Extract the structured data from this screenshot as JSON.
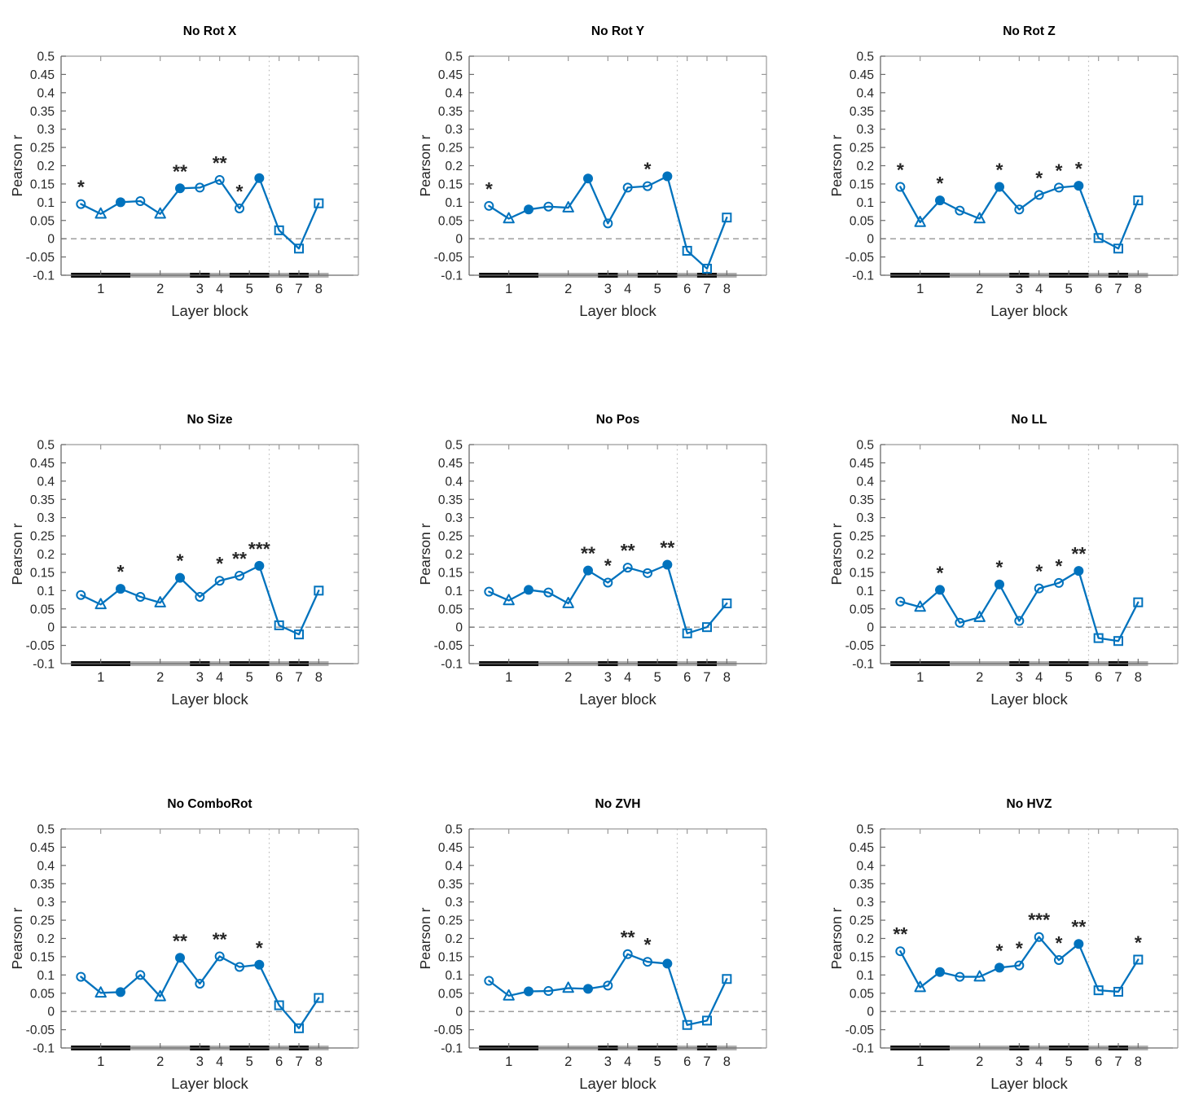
{
  "figure": {
    "ylabel": "Pearson r",
    "xlabel": "Layer block",
    "ylim": [
      -0.1,
      0.5
    ],
    "xlim": [
      0,
      15
    ],
    "yticks": [
      -0.1,
      -0.05,
      0,
      0.05,
      0.1,
      0.15,
      0.2,
      0.25,
      0.3,
      0.35,
      0.4,
      0.45,
      0.5
    ],
    "ytick_labels": [
      "-0.1",
      "-0.05",
      "0",
      "0.05",
      "0.1",
      "0.15",
      "0.2",
      "0.25",
      "0.3",
      "0.35",
      "0.4",
      "0.45",
      "0.5"
    ],
    "xtick_positions": [
      2,
      5,
      7,
      8,
      9.5,
      11,
      12,
      13
    ],
    "xtick_labels": [
      "1",
      "2",
      "3",
      "4",
      "5",
      "6",
      "7",
      "8"
    ],
    "zero_dashed_line_y": 0,
    "separator_dotted_line_x": 10.5,
    "line_color": "#0072BD",
    "sig_color": "#000000",
    "bar_black": "#0d0d0d",
    "bar_gray": "#b0b0b0",
    "marker_sequence": [
      "circle",
      "triangle",
      "circle-filled",
      "circle",
      "triangle",
      "circle-filled",
      "circle",
      "circle",
      "circle",
      "circle-filled",
      "square",
      "square",
      "square"
    ],
    "layer_block_bars": [
      {
        "block": "1",
        "from": 0.5,
        "to": 3.5,
        "color": "#0d0d0d"
      },
      {
        "block": "2",
        "from": 3.5,
        "to": 6.5,
        "color": "#b0b0b0"
      },
      {
        "block": "3",
        "from": 6.5,
        "to": 7.5,
        "color": "#0d0d0d"
      },
      {
        "block": "4",
        "from": 7.5,
        "to": 8.5,
        "color": "#b0b0b0"
      },
      {
        "block": "5",
        "from": 8.5,
        "to": 10.5,
        "color": "#0d0d0d"
      },
      {
        "block": "6",
        "from": 10.5,
        "to": 11.5,
        "color": "#b0b0b0"
      },
      {
        "block": "7",
        "from": 11.5,
        "to": 12.5,
        "color": "#0d0d0d"
      },
      {
        "block": "8",
        "from": 12.5,
        "to": 13.5,
        "color": "#b0b0b0"
      }
    ]
  },
  "chart_data": [
    {
      "type": "line",
      "title": "No Rot X",
      "xlabel": "Layer block",
      "ylabel": "Pearson r",
      "x": [
        1,
        2,
        3,
        4,
        5,
        6,
        7,
        8,
        9,
        10,
        11,
        12,
        13
      ],
      "values": [
        0.095,
        0.068,
        0.1,
        0.103,
        0.068,
        0.138,
        0.14,
        0.161,
        0.083,
        0.166,
        0.023,
        -0.027,
        0.097
      ],
      "sig": [
        "*",
        "",
        "",
        "",
        "",
        "**",
        "",
        "**",
        "*",
        "",
        "",
        "",
        ""
      ]
    },
    {
      "type": "line",
      "title": "No Rot Y",
      "xlabel": "Layer block",
      "ylabel": "Pearson r",
      "x": [
        1,
        2,
        3,
        4,
        5,
        6,
        7,
        8,
        9,
        10,
        11,
        12,
        13
      ],
      "values": [
        0.09,
        0.055,
        0.08,
        0.088,
        0.085,
        0.165,
        0.042,
        0.14,
        0.144,
        0.171,
        -0.033,
        -0.082,
        0.058
      ],
      "sig": [
        "*",
        "",
        "",
        "",
        "",
        "",
        "",
        "",
        "*",
        "",
        "",
        "",
        ""
      ]
    },
    {
      "type": "line",
      "title": "No Rot Z",
      "xlabel": "Layer block",
      "ylabel": "Pearson r",
      "x": [
        1,
        2,
        3,
        4,
        5,
        6,
        7,
        8,
        9,
        10,
        11,
        12,
        13
      ],
      "values": [
        0.142,
        0.045,
        0.105,
        0.077,
        0.055,
        0.142,
        0.08,
        0.12,
        0.14,
        0.145,
        0.002,
        -0.027,
        0.105
      ],
      "sig": [
        "*",
        "",
        "*",
        "",
        "",
        "*",
        "",
        "*",
        "*",
        "*",
        "",
        "",
        ""
      ]
    },
    {
      "type": "line",
      "title": "No Size",
      "xlabel": "Layer block",
      "ylabel": "Pearson r",
      "x": [
        1,
        2,
        3,
        4,
        5,
        6,
        7,
        8,
        9,
        10,
        11,
        12,
        13
      ],
      "values": [
        0.088,
        0.062,
        0.105,
        0.083,
        0.067,
        0.135,
        0.083,
        0.127,
        0.141,
        0.168,
        0.005,
        -0.02,
        0.1
      ],
      "sig": [
        "",
        "",
        "*",
        "",
        "",
        "*",
        "",
        "*",
        "**",
        "***",
        "",
        "",
        ""
      ]
    },
    {
      "type": "line",
      "title": "No Pos",
      "xlabel": "Layer block",
      "ylabel": "Pearson r",
      "x": [
        1,
        2,
        3,
        4,
        5,
        6,
        7,
        8,
        9,
        10,
        11,
        12,
        13
      ],
      "values": [
        0.097,
        0.073,
        0.102,
        0.095,
        0.065,
        0.155,
        0.122,
        0.163,
        0.148,
        0.171,
        -0.017,
        0.0,
        0.065
      ],
      "sig": [
        "",
        "",
        "",
        "",
        "",
        "**",
        "*",
        "**",
        "",
        "**",
        "",
        "",
        ""
      ]
    },
    {
      "type": "line",
      "title": "No LL",
      "xlabel": "Layer block",
      "ylabel": "Pearson r",
      "x": [
        1,
        2,
        3,
        4,
        5,
        6,
        7,
        8,
        9,
        10,
        11,
        12,
        13
      ],
      "values": [
        0.07,
        0.055,
        0.102,
        0.012,
        0.027,
        0.117,
        0.017,
        0.106,
        0.121,
        0.154,
        -0.03,
        -0.038,
        0.068
      ],
      "sig": [
        "",
        "",
        "*",
        "",
        "",
        "*",
        "",
        "*",
        "*",
        "**",
        "",
        "",
        ""
      ]
    },
    {
      "type": "line",
      "title": "No ComboRot",
      "xlabel": "Layer block",
      "ylabel": "Pearson r",
      "x": [
        1,
        2,
        3,
        4,
        5,
        6,
        7,
        8,
        9,
        10,
        11,
        12,
        13
      ],
      "values": [
        0.095,
        0.051,
        0.053,
        0.1,
        0.041,
        0.147,
        0.076,
        0.151,
        0.122,
        0.128,
        0.017,
        -0.046,
        0.037
      ],
      "sig": [
        "",
        "",
        "",
        "",
        "",
        "**",
        "",
        "**",
        "",
        "*",
        "",
        "",
        ""
      ]
    },
    {
      "type": "line",
      "title": "No ZVH",
      "xlabel": "Layer block",
      "ylabel": "Pearson r",
      "x": [
        1,
        2,
        3,
        4,
        5,
        6,
        7,
        8,
        9,
        10,
        11,
        12,
        13
      ],
      "values": [
        0.084,
        0.043,
        0.055,
        0.056,
        0.064,
        0.062,
        0.071,
        0.157,
        0.136,
        0.131,
        -0.037,
        -0.025,
        0.089
      ],
      "sig": [
        "",
        "",
        "",
        "",
        "",
        "",
        "",
        "**",
        "*",
        "",
        "",
        "",
        ""
      ]
    },
    {
      "type": "line",
      "title": "No HVZ",
      "xlabel": "Layer block",
      "ylabel": "Pearson r",
      "x": [
        1,
        2,
        3,
        4,
        5,
        6,
        7,
        8,
        9,
        10,
        11,
        12,
        13
      ],
      "values": [
        0.165,
        0.066,
        0.108,
        0.095,
        0.095,
        0.12,
        0.126,
        0.204,
        0.141,
        0.185,
        0.058,
        0.054,
        0.142
      ],
      "sig": [
        "**",
        "",
        "",
        "",
        "",
        "*",
        "*",
        "***",
        "*",
        "**",
        "",
        "",
        "*"
      ]
    }
  ]
}
